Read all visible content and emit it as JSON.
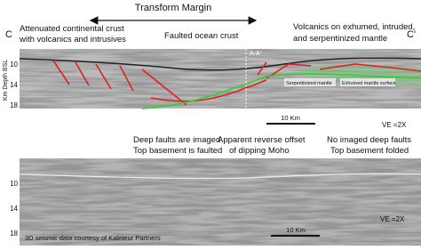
{
  "header": {
    "title": "Transform Margin",
    "left_end": "C",
    "right_end": "C'"
  },
  "annotations": {
    "left": [
      "Attenuated continental crust",
      "with volcanics and intrusives"
    ],
    "center": "Faulted ocean crust",
    "right": [
      "Volcanics on exhumed, intruded,",
      "and serpentinized mantle"
    ]
  },
  "upper_panel": {
    "axis_label": "Km Depth BSL",
    "yticks": [
      "10",
      "14",
      "18"
    ],
    "line_label": "A-A'",
    "labels": [
      "Serpentinized mantle",
      "Exhumed mantle surface"
    ],
    "scale": "10 Km",
    "ve": "VE =2X"
  },
  "middle_notes": {
    "left": [
      "Deep faults are imaged",
      "Top basement is faulted"
    ],
    "center": [
      "Apparent reverse offset",
      "of dipping Moho"
    ],
    "right": [
      "No imaged deep faults",
      "Top basement folded"
    ]
  },
  "lower_panel": {
    "yticks": [
      "10",
      "14",
      "18"
    ],
    "credit": "3D seismic data courtesy of Kaleteur Partners",
    "scale": "10 Km",
    "ve": "VE =2X"
  }
}
